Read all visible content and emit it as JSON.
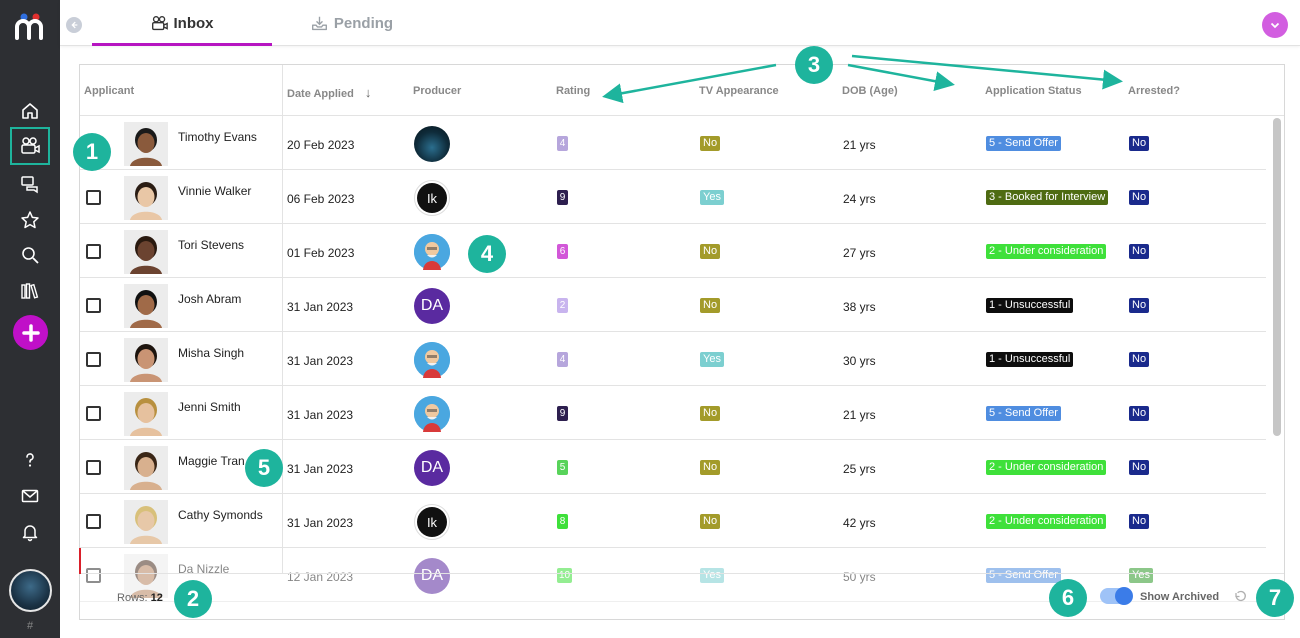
{
  "tabs": [
    {
      "label": "Inbox"
    },
    {
      "label": "Pending"
    }
  ],
  "table": {
    "columns": [
      "Applicant",
      "Date Applied",
      "Producer",
      "Rating",
      "TV Appearance",
      "DOB (Age)",
      "Application Status",
      "Arrested?"
    ],
    "sort_indicator": "↓",
    "rows": [
      {
        "name": "Timothy Evans",
        "date": "20 Feb 2023",
        "producer": "ocean",
        "rating": "4",
        "rating_color": "#b6a6dc",
        "tv": "No",
        "tv_color": "#a39b2a",
        "dob": "21 yrs",
        "status": "5 - Send Offer",
        "status_color": "#4f8de0",
        "arrested": "No"
      },
      {
        "name": "Vinnie Walker",
        "date": "06 Feb 2023",
        "producer": "ik",
        "producer_text": "Ik",
        "rating": "9",
        "rating_color": "#2d1f4f",
        "tv": "Yes",
        "tv_color": "#7ccfd0",
        "dob": "24 yrs",
        "status": "3 - Booked for Interview",
        "status_color": "#4e6b12",
        "arrested": "No"
      },
      {
        "name": "Tori Stevens",
        "date": "01 Feb 2023",
        "producer": "cartoon",
        "rating": "6",
        "rating_color": "#d257d8",
        "tv": "No",
        "tv_color": "#a39b2a",
        "dob": "27 yrs",
        "status": "2 - Under consideration",
        "status_color": "#3ee03a",
        "arrested": "No"
      },
      {
        "name": "Josh Abram",
        "date": "31 Jan 2023",
        "producer": "da",
        "producer_text": "DA",
        "rating": "2",
        "rating_color": "#c8b4ee",
        "tv": "No",
        "tv_color": "#a39b2a",
        "dob": "38 yrs",
        "status": "1 - Unsuccessful",
        "status_color": "#0d0d0d",
        "arrested": "No"
      },
      {
        "name": "Misha Singh",
        "date": "31 Jan 2023",
        "producer": "cartoon",
        "rating": "4",
        "rating_color": "#b6a6dc",
        "tv": "Yes",
        "tv_color": "#7ccfd0",
        "dob": "30 yrs",
        "status": "1 - Unsuccessful",
        "status_color": "#0d0d0d",
        "arrested": "No"
      },
      {
        "name": "Jenni Smith",
        "date": "31 Jan 2023",
        "producer": "cartoon",
        "rating": "9",
        "rating_color": "#2d1f4f",
        "tv": "No",
        "tv_color": "#a39b2a",
        "dob": "21 yrs",
        "status": "5 - Send Offer",
        "status_color": "#4f8de0",
        "arrested": "No"
      },
      {
        "name": "Maggie Tran",
        "date": "31 Jan 2023",
        "producer": "da",
        "producer_text": "DA",
        "rating": "5",
        "rating_color": "#58d35a",
        "tv": "No",
        "tv_color": "#a39b2a",
        "dob": "25 yrs",
        "status": "2 - Under consideration",
        "status_color": "#3ee03a",
        "arrested": "No"
      },
      {
        "name": "Cathy Symonds",
        "date": "31 Jan 2023",
        "producer": "ik",
        "producer_text": "Ik",
        "rating": "8",
        "rating_color": "#3ee03a",
        "tv": "No",
        "tv_color": "#a39b2a",
        "dob": "42 yrs",
        "status": "2 - Under consideration",
        "status_color": "#3ee03a",
        "arrested": "No"
      },
      {
        "name": "Da Nizzle",
        "date": "12 Jan 2023",
        "producer": "da",
        "producer_text": "DA",
        "rating": "10",
        "rating_color": "#3ee03a",
        "tv": "Yes",
        "tv_color": "#7ccfd0",
        "dob": "50 yrs",
        "status": "5 - Send Offer",
        "status_color": "#4f8de0",
        "arrested": "Yes",
        "arrested_color": "#2f9a2a"
      }
    ]
  },
  "footer": {
    "rows_label": "Rows:",
    "rows_count": "12",
    "show_archived_label": "Show Archived",
    "show_archived_on": true
  },
  "sidebar": {
    "hash": "#"
  },
  "callouts": [
    "1",
    "2",
    "3",
    "4",
    "5",
    "6",
    "7"
  ],
  "colors": {
    "accent": "#b614c1",
    "callout": "#1eb49d",
    "sidebar_bg": "#2d2f33"
  }
}
